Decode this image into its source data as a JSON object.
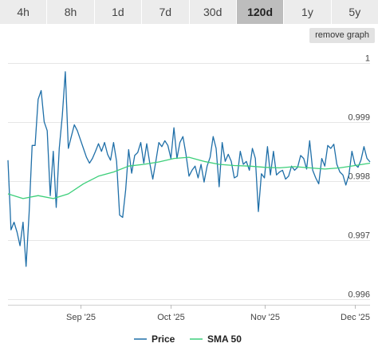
{
  "tabs": [
    {
      "label": "4h",
      "active": false
    },
    {
      "label": "8h",
      "active": false
    },
    {
      "label": "1d",
      "active": false
    },
    {
      "label": "7d",
      "active": false
    },
    {
      "label": "30d",
      "active": false
    },
    {
      "label": "120d",
      "active": true
    },
    {
      "label": "1y",
      "active": false
    },
    {
      "label": "5y",
      "active": false
    }
  ],
  "remove_graph_label": "remove graph",
  "colors": {
    "price": "#1f6fa8",
    "sma": "#3ccf7a",
    "grid": "#e6e6e6"
  },
  "chart_data": {
    "type": "line",
    "title": "",
    "xlabel": "",
    "ylabel": "",
    "ylim": [
      0.9959,
      1.0002
    ],
    "yticks": [
      {
        "value": 1.0,
        "label": "1"
      },
      {
        "value": 0.999,
        "label": "0.999"
      },
      {
        "value": 0.998,
        "label": "0.998"
      },
      {
        "value": 0.997,
        "label": "0.997"
      },
      {
        "value": 0.996,
        "label": "0.996"
      }
    ],
    "xlim": [
      0,
      120
    ],
    "xticks": [
      {
        "x": 24,
        "label": "Sep '25"
      },
      {
        "x": 54,
        "label": "Oct '25"
      },
      {
        "x": 85,
        "label": "Nov '25"
      },
      {
        "x": 115,
        "label": "Dec '25"
      }
    ],
    "legend": {
      "position": "bottom-center"
    },
    "series": [
      {
        "name": "Price",
        "x": [
          0,
          1,
          2,
          3,
          4,
          5,
          6,
          7,
          8,
          9,
          10,
          11,
          12,
          13,
          14,
          15,
          16,
          17,
          18,
          19,
          20,
          21,
          22,
          23,
          24,
          25,
          26,
          27,
          28,
          29,
          30,
          31,
          32,
          33,
          34,
          35,
          36,
          37,
          38,
          39,
          40,
          41,
          42,
          43,
          44,
          45,
          46,
          47,
          48,
          49,
          50,
          51,
          52,
          53,
          54,
          55,
          56,
          57,
          58,
          59,
          60,
          61,
          62,
          63,
          64,
          65,
          66,
          67,
          68,
          69,
          70,
          71,
          72,
          73,
          74,
          75,
          76,
          77,
          78,
          79,
          80,
          81,
          82,
          83,
          84,
          85,
          86,
          87,
          88,
          89,
          90,
          91,
          92,
          93,
          94,
          95,
          96,
          97,
          98,
          99,
          100,
          101,
          102,
          103,
          104,
          105,
          106,
          107,
          108,
          109,
          110,
          111,
          112,
          113,
          114,
          115,
          116,
          117,
          118,
          119,
          120
        ],
        "values": [
          0.99835,
          0.99717,
          0.9973,
          0.99713,
          0.9969,
          0.9973,
          0.99655,
          0.99745,
          0.9986,
          0.9986,
          0.99938,
          0.99953,
          0.999,
          0.99885,
          0.99775,
          0.9985,
          0.99755,
          0.99855,
          0.9991,
          0.99985,
          0.99855,
          0.99875,
          0.99895,
          0.99885,
          0.9987,
          0.99855,
          0.9984,
          0.9983,
          0.99838,
          0.9985,
          0.99863,
          0.9985,
          0.99865,
          0.99845,
          0.99835,
          0.99865,
          0.99833,
          0.99742,
          0.99738,
          0.99785,
          0.99853,
          0.99813,
          0.99843,
          0.99848,
          0.99865,
          0.9983,
          0.99863,
          0.9983,
          0.99803,
          0.99833,
          0.99865,
          0.99858,
          0.99868,
          0.9986,
          0.99838,
          0.9989,
          0.99838,
          0.99865,
          0.99875,
          0.99845,
          0.99808,
          0.99818,
          0.99825,
          0.99805,
          0.99828,
          0.99798,
          0.99825,
          0.9984,
          0.99875,
          0.99855,
          0.9979,
          0.99865,
          0.99833,
          0.99845,
          0.99833,
          0.99805,
          0.99808,
          0.9985,
          0.99828,
          0.99833,
          0.99818,
          0.99855,
          0.99838,
          0.99748,
          0.99812,
          0.99805,
          0.99858,
          0.9981,
          0.9985,
          0.9981,
          0.99815,
          0.99818,
          0.99803,
          0.99808,
          0.99825,
          0.99818,
          0.99823,
          0.99843,
          0.99838,
          0.9982,
          0.99868,
          0.99818,
          0.99805,
          0.99795,
          0.99838,
          0.99825,
          0.9986,
          0.99855,
          0.99862,
          0.99828,
          0.99815,
          0.9981,
          0.99793,
          0.9981,
          0.9985,
          0.99828,
          0.99823,
          0.99835,
          0.99858,
          0.99838,
          0.99832
        ],
        "dash": false
      },
      {
        "name": "SMA 50",
        "x": [
          0,
          5,
          10,
          15,
          20,
          25,
          30,
          35,
          40,
          45,
          50,
          55,
          60,
          65,
          70,
          75,
          80,
          85,
          90,
          95,
          100,
          105,
          110,
          115,
          120
        ],
        "values": [
          0.99778,
          0.9977,
          0.99775,
          0.9977,
          0.99778,
          0.99795,
          0.99808,
          0.99815,
          0.99825,
          0.99828,
          0.99832,
          0.99838,
          0.9984,
          0.99833,
          0.99828,
          0.99826,
          0.99825,
          0.99823,
          0.99822,
          0.99824,
          0.99822,
          0.9982,
          0.99822,
          0.99826,
          0.9983
        ]
      }
    ]
  }
}
